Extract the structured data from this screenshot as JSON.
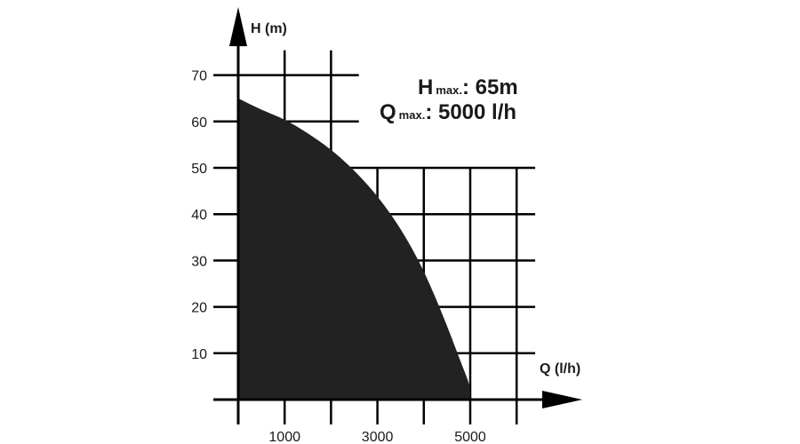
{
  "chart_data": {
    "type": "area",
    "title": "",
    "xlabel": "Q (l/h)",
    "ylabel": "H (m)",
    "x_ticks": [
      {
        "value": 1000,
        "label": "1000"
      },
      {
        "value": 3000,
        "label": "3000"
      },
      {
        "value": 5000,
        "label": "5000"
      }
    ],
    "y_ticks": [
      {
        "value": 10,
        "label": "10"
      },
      {
        "value": 20,
        "label": "20"
      },
      {
        "value": 30,
        "label": "30"
      },
      {
        "value": 40,
        "label": "40"
      },
      {
        "value": 50,
        "label": "50"
      },
      {
        "value": 60,
        "label": "60"
      },
      {
        "value": 70,
        "label": "70"
      }
    ],
    "xlim": [
      0,
      6000
    ],
    "ylim": [
      0,
      70
    ],
    "grid": true,
    "series": [
      {
        "x": [
          0,
          500,
          1000,
          1500,
          2000,
          2500,
          3000,
          3500,
          4000,
          4500,
          4800,
          5000,
          5000
        ],
        "y": [
          65,
          62.5,
          60.5,
          57.5,
          54,
          49.5,
          44,
          37,
          28,
          16,
          8,
          3,
          0
        ]
      }
    ],
    "annotations": {
      "hmax": {
        "symbol": "H",
        "sub": "max.",
        "value": ": 65m"
      },
      "qmax": {
        "symbol": "Q",
        "sub": "max.",
        "value": ": 5000 l/h"
      }
    },
    "colors": {
      "fill": "#222222",
      "grid": "#000000"
    }
  }
}
